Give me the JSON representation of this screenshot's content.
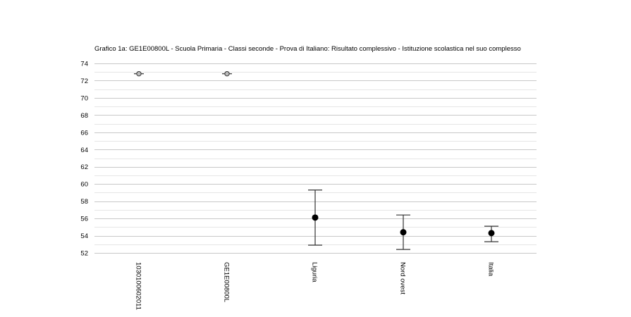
{
  "chart_data": {
    "type": "scatter",
    "title": "Grafico 1a: GE1E00800L - Scuola Primaria - Classi seconde - Prova di Italiano: Risultato complessivo - Istituzione scolastica nel suo complesso",
    "xlabel": "",
    "ylabel": "",
    "ylim": [
      52,
      74
    ],
    "yticks": [
      52,
      54,
      56,
      58,
      60,
      62,
      64,
      66,
      68,
      70,
      72,
      74
    ],
    "grid": true,
    "categories": [
      "1030100602011",
      "GE1E00800L",
      "Liguria",
      "Nord ovest",
      "Italia"
    ],
    "points": [
      {
        "category": "1030100602011",
        "value": 72.8,
        "marker": "open"
      },
      {
        "category": "GE1E00800L",
        "value": 72.8,
        "marker": "open"
      },
      {
        "category": "Liguria",
        "value": 56.1,
        "low": 52.9,
        "high": 59.3,
        "marker": "filled"
      },
      {
        "category": "Nord ovest",
        "value": 54.4,
        "low": 52.4,
        "high": 56.4,
        "marker": "filled"
      },
      {
        "category": "Italia",
        "value": 54.3,
        "low": 53.3,
        "high": 55.1,
        "marker": "filled"
      }
    ]
  }
}
